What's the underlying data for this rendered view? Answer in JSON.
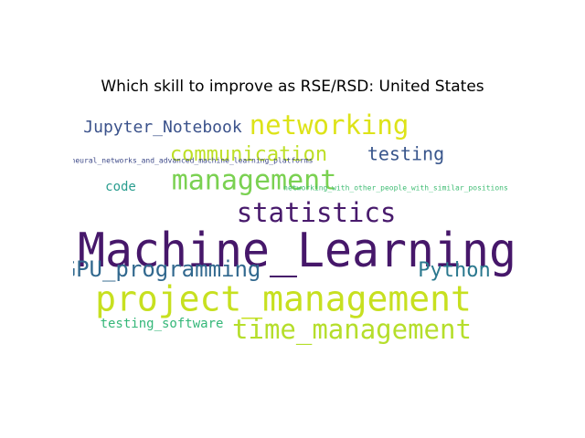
{
  "chart_data": {
    "type": "wordcloud",
    "title": "Which skill to improve as RSE/RSD: United States",
    "words": [
      {
        "text": "Machine_Learning",
        "weight": 100,
        "color": "#46176a"
      },
      {
        "text": "project_management",
        "weight": 72,
        "color": "#c7e020"
      },
      {
        "text": "time_management",
        "weight": 55,
        "color": "#b5de2b"
      },
      {
        "text": "management",
        "weight": 56,
        "color": "#7ad151"
      },
      {
        "text": "networking",
        "weight": 55,
        "color": "#dde318"
      },
      {
        "text": "statistics",
        "weight": 55,
        "color": "#481a6c"
      },
      {
        "text": "GPU_programming",
        "weight": 46,
        "color": "#31688e"
      },
      {
        "text": "communication",
        "weight": 42,
        "color": "#bddf26"
      },
      {
        "text": "Python",
        "weight": 42,
        "color": "#2a788e"
      },
      {
        "text": "testing",
        "weight": 38,
        "color": "#39568c"
      },
      {
        "text": "Jupyter_Notebook",
        "weight": 35,
        "color": "#3b528b"
      },
      {
        "text": "testing_software",
        "weight": 25,
        "color": "#35b779"
      },
      {
        "text": "code",
        "weight": 25,
        "color": "#2a9d8f"
      },
      {
        "text": "neural_networks_and_advanced_machine_learning_platforms",
        "weight": 14,
        "color": "#3e4a89"
      },
      {
        "text": "networking_with_other_people_with_similar_positions",
        "weight": 12,
        "color": "#3fbc73"
      }
    ]
  }
}
